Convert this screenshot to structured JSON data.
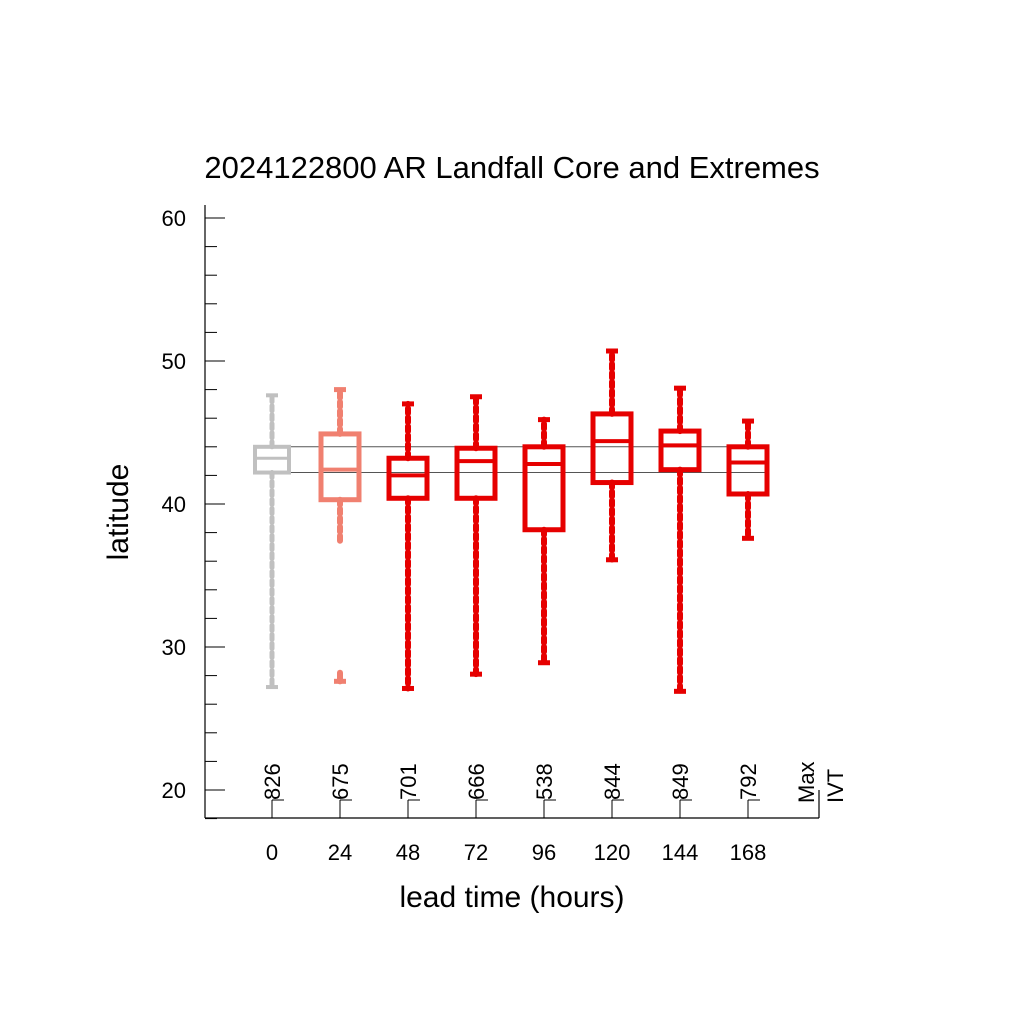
{
  "chart_data": {
    "type": "box",
    "title": "2024122800 AR Landfall Core and Extremes",
    "xlabel": "lead time (hours)",
    "ylabel": "latitude",
    "categories": [
      "0",
      "24",
      "48",
      "72",
      "96",
      "120",
      "144",
      "168"
    ],
    "counts": [
      "826",
      "675",
      "701",
      "666",
      "538",
      "844",
      "849",
      "792"
    ],
    "counts_end_label": [
      "Max",
      "IVT"
    ],
    "ylim": [
      18,
      61
    ],
    "yticks": [
      20,
      30,
      40,
      50,
      60
    ],
    "y_minor_step": 2,
    "reference_lines": [
      44.0,
      42.2
    ],
    "boxes": [
      {
        "lead": 0,
        "min": 27.2,
        "q1": 42.2,
        "median": 43.2,
        "q3": 44.0,
        "max": 47.6,
        "color": "#c0c0c0"
      },
      {
        "lead": 24,
        "min": 27.6,
        "q1": 40.3,
        "median": 42.4,
        "q3": 44.9,
        "max": 48.0,
        "color": "#f08070",
        "lower_whisker_end": 37.2
      },
      {
        "lead": 48,
        "min": 27.1,
        "q1": 40.4,
        "median": 42.0,
        "q3": 43.2,
        "max": 47.0,
        "color": "#e60000"
      },
      {
        "lead": 72,
        "min": 28.1,
        "q1": 40.4,
        "median": 43.0,
        "q3": 43.9,
        "max": 47.5,
        "color": "#e60000"
      },
      {
        "lead": 96,
        "min": 28.9,
        "q1": 38.2,
        "median": 42.8,
        "q3": 44.0,
        "max": 45.9,
        "color": "#e60000"
      },
      {
        "lead": 120,
        "min": 36.1,
        "q1": 41.5,
        "median": 44.4,
        "q3": 46.3,
        "max": 50.7,
        "color": "#e60000"
      },
      {
        "lead": 144,
        "min": 26.9,
        "q1": 42.4,
        "median": 44.1,
        "q3": 45.1,
        "max": 48.1,
        "color": "#e60000"
      },
      {
        "lead": 168,
        "min": 37.6,
        "q1": 40.7,
        "median": 42.9,
        "q3": 44.0,
        "max": 45.8,
        "color": "#e60000"
      }
    ]
  }
}
